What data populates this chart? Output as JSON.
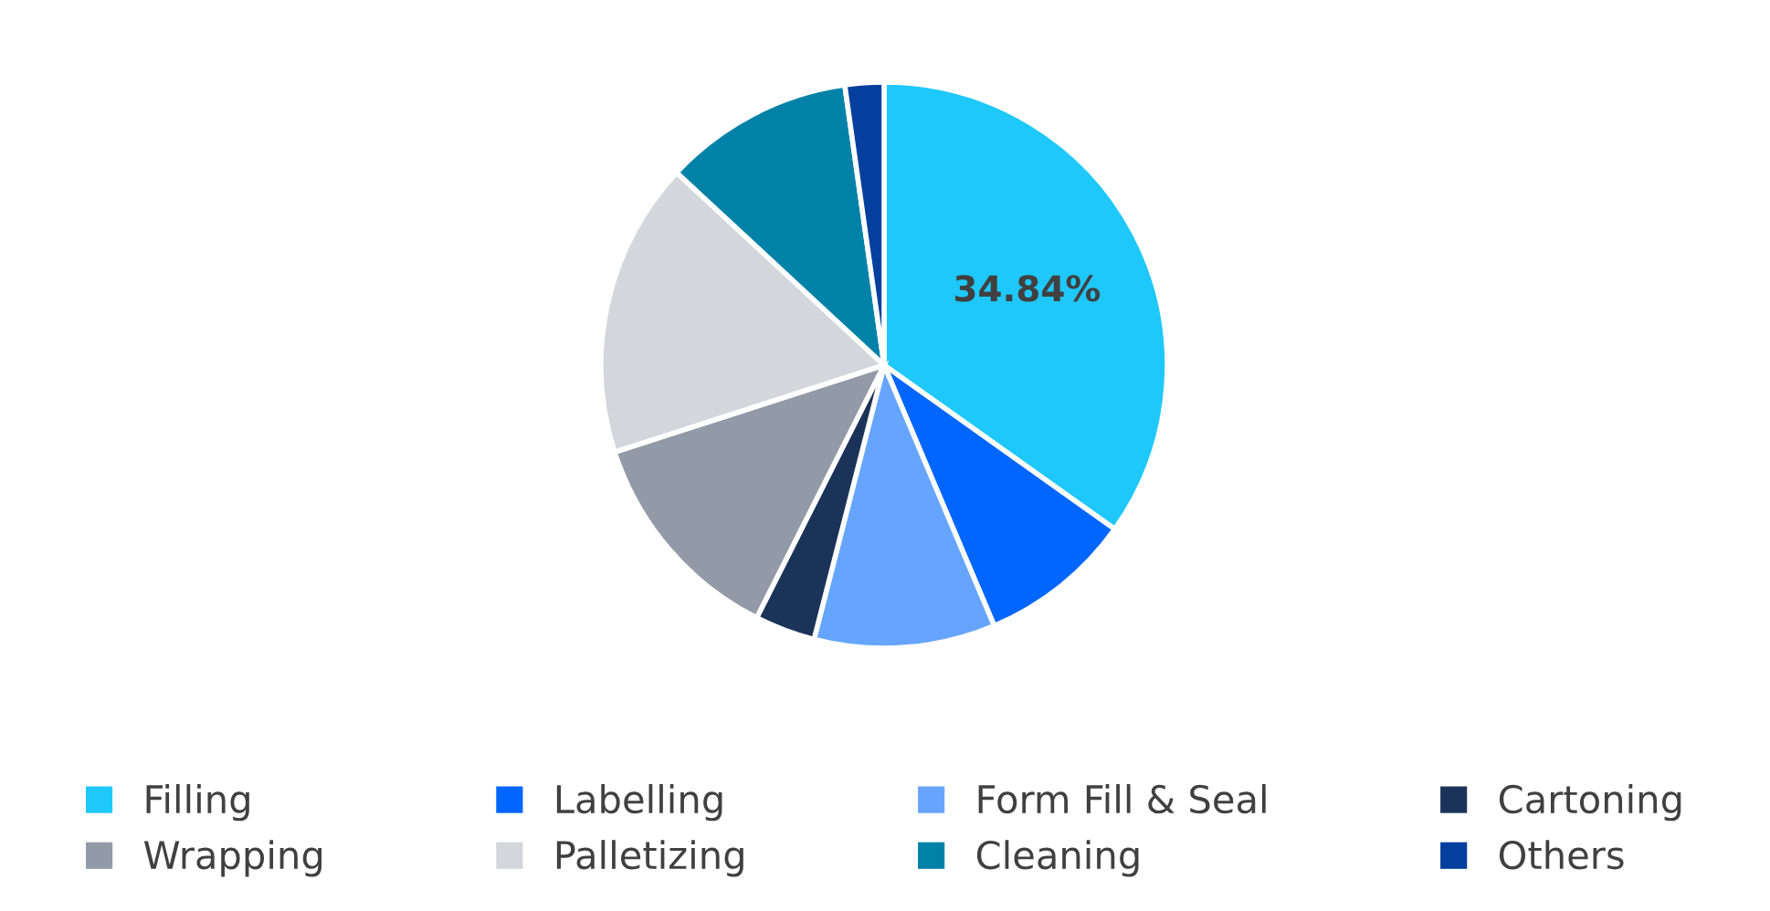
{
  "chart_data": {
    "type": "pie",
    "categories": [
      "Filling",
      "Labelling",
      "Form Fill & Seal",
      "Cartoning",
      "Wrapping",
      "Palletizing",
      "Cleaning",
      "Others"
    ],
    "values": [
      34.84,
      8.8,
      10.34,
      3.45,
      12.6,
      16.88,
      10.87,
      2.22
    ],
    "colors": [
      "#1fc8fb",
      "#0066ff",
      "#66a5ff",
      "#1c3359",
      "#939aa7",
      "#d5d6db",
      "#0082a8",
      "#053f9e"
    ],
    "value_labels": [
      "34.84%",
      null,
      null,
      null,
      null,
      null,
      null,
      null
    ],
    "legend": "bottom"
  }
}
